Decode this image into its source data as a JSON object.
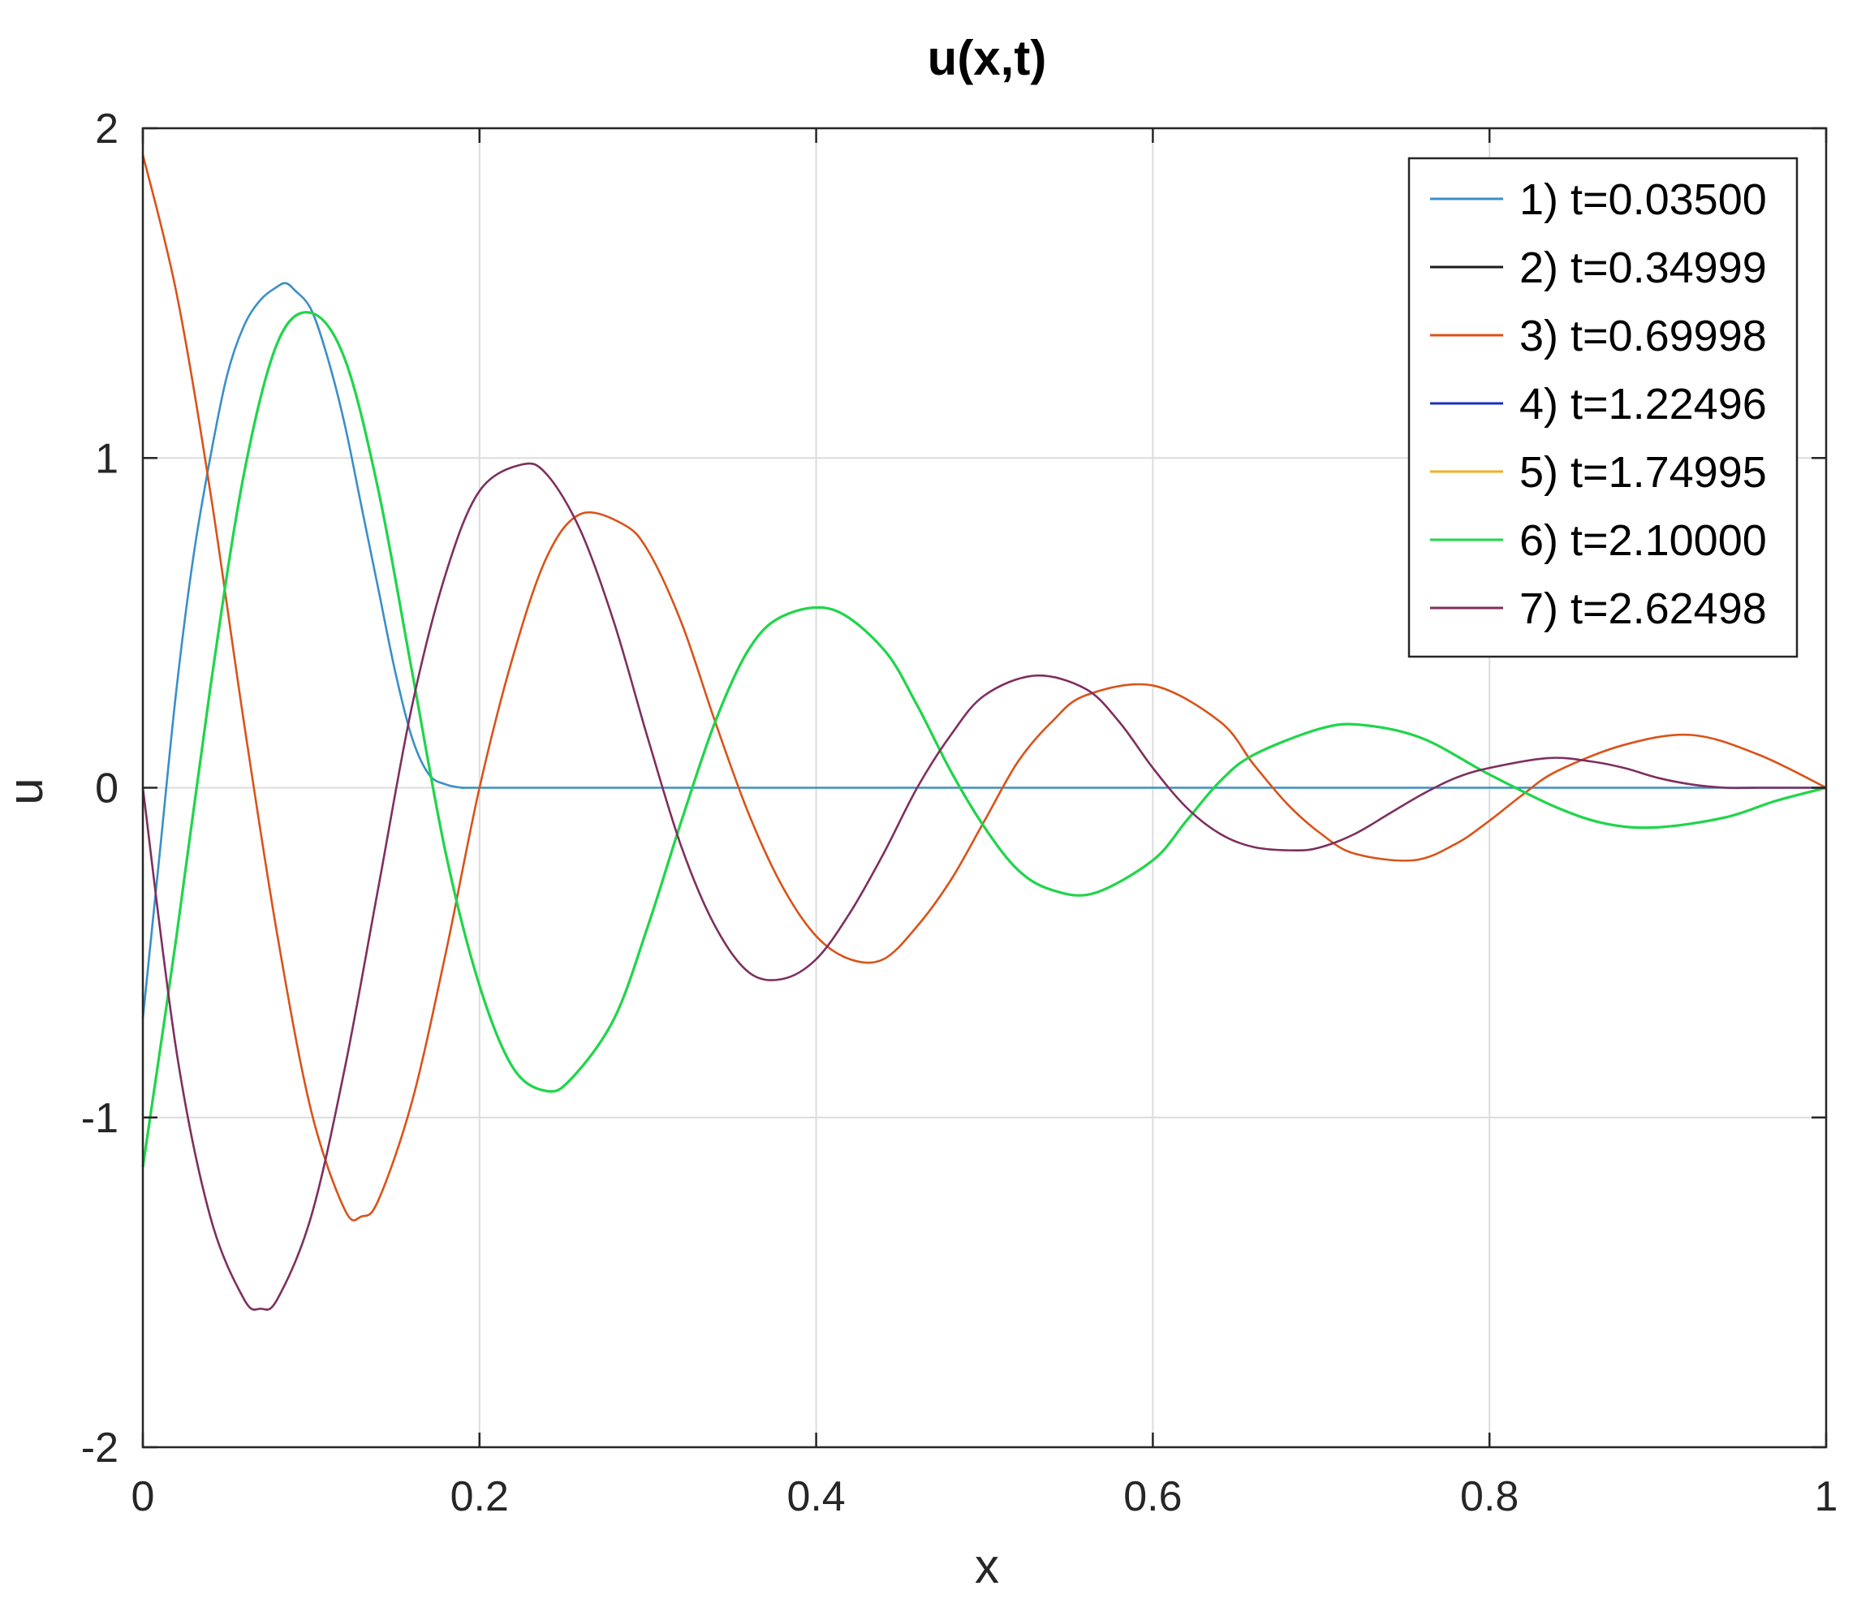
{
  "chart_data": {
    "type": "line",
    "title": "u(x,t)",
    "xlabel": "x",
    "ylabel": "u",
    "xlim": [
      0,
      1
    ],
    "ylim": [
      -2,
      2
    ],
    "xticks": [
      0,
      0.2,
      0.4,
      0.6,
      0.8,
      1
    ],
    "xtick_labels": [
      "0",
      "0.2",
      "0.4",
      "0.6",
      "0.8",
      "1"
    ],
    "yticks": [
      -2,
      -1,
      0,
      1,
      2
    ],
    "ytick_labels": [
      "-2",
      "-1",
      "0",
      "1",
      "2"
    ],
    "grid": true,
    "legend_position": "top-right",
    "series": [
      {
        "name": "1) t=0.03500",
        "color": "#3a8fc8",
        "x": [
          0,
          0.01,
          0.02,
          0.03,
          0.04,
          0.05,
          0.06,
          0.07,
          0.08,
          0.085,
          0.09,
          0.1,
          0.11,
          0.12,
          0.13,
          0.14,
          0.15,
          0.16,
          0.17,
          0.18,
          0.19,
          0.2,
          0.3,
          0.4,
          0.5,
          0.6,
          0.7,
          0.8,
          0.9,
          1.0
        ],
        "y": [
          -0.7,
          -0.2,
          0.3,
          0.7,
          1.0,
          1.25,
          1.4,
          1.48,
          1.52,
          1.53,
          1.51,
          1.45,
          1.3,
          1.1,
          0.85,
          0.6,
          0.35,
          0.15,
          0.04,
          0.01,
          0,
          0,
          0,
          0,
          0,
          0,
          0,
          0,
          0,
          0
        ]
      },
      {
        "name": "2) t=0.34999",
        "color": "#1a1a1a",
        "x": [
          0,
          0.02,
          0.04,
          0.06,
          0.08,
          0.1,
          0.12,
          0.14,
          0.16,
          0.18,
          0.2,
          0.22,
          0.24,
          0.255,
          0.28,
          0.3,
          0.32,
          0.34,
          0.36,
          0.38,
          0.41,
          0.44,
          0.46,
          0.48,
          0.5,
          0.52,
          0.54,
          0.565,
          0.6,
          0.62,
          0.64,
          0.66,
          0.7,
          0.725,
          0.76,
          0.8,
          0.84,
          0.87,
          0.9,
          0.94,
          0.97,
          1.0
        ],
        "y": [
          -1.15,
          -0.45,
          0.3,
          0.95,
          1.35,
          1.44,
          1.3,
          0.9,
          0.35,
          -0.2,
          -0.6,
          -0.85,
          -0.92,
          -0.88,
          -0.7,
          -0.42,
          -0.1,
          0.2,
          0.42,
          0.52,
          0.54,
          0.42,
          0.25,
          0.05,
          -0.12,
          -0.25,
          -0.31,
          -0.32,
          -0.22,
          -0.1,
          0.02,
          0.1,
          0.18,
          0.19,
          0.15,
          0.04,
          -0.06,
          -0.11,
          -0.12,
          -0.09,
          -0.04,
          0
        ]
      },
      {
        "name": "3) t=0.69998",
        "color": "#d95319",
        "x": [
          0,
          0.02,
          0.04,
          0.06,
          0.08,
          0.1,
          0.12,
          0.13,
          0.14,
          0.16,
          0.18,
          0.2,
          0.22,
          0.24,
          0.26,
          0.285,
          0.3,
          0.32,
          0.34,
          0.36,
          0.38,
          0.4,
          0.42,
          0.44,
          0.46,
          0.48,
          0.5,
          0.52,
          0.54,
          0.56,
          0.6,
          0.64,
          0.66,
          0.68,
          0.7,
          0.72,
          0.755,
          0.78,
          0.8,
          0.82,
          0.84,
          0.88,
          0.92,
          0.96,
          1.0
        ],
        "y": [
          1.92,
          1.5,
          0.9,
          0.2,
          -0.45,
          -0.98,
          -1.28,
          -1.3,
          -1.25,
          -0.95,
          -0.5,
          0.0,
          0.4,
          0.7,
          0.83,
          0.8,
          0.72,
          0.5,
          0.2,
          -0.08,
          -0.3,
          -0.45,
          -0.52,
          -0.52,
          -0.42,
          -0.28,
          -0.1,
          0.08,
          0.2,
          0.28,
          0.31,
          0.2,
          0.07,
          -0.05,
          -0.14,
          -0.2,
          -0.22,
          -0.17,
          -0.1,
          -0.02,
          0.05,
          0.13,
          0.16,
          0.1,
          0
        ]
      },
      {
        "name": "4) t=1.22496",
        "color": "#1a2fbf",
        "x": [
          0,
          0.02,
          0.04,
          0.06,
          0.08,
          0.1,
          0.12,
          0.14,
          0.16,
          0.18,
          0.2,
          0.22,
          0.24,
          0.255,
          0.28,
          0.3,
          0.32,
          0.34,
          0.36,
          0.38,
          0.41,
          0.44,
          0.46,
          0.48,
          0.5,
          0.52,
          0.54,
          0.565,
          0.6,
          0.62,
          0.64,
          0.66,
          0.7,
          0.725,
          0.76,
          0.8,
          0.84,
          0.87,
          0.9,
          0.94,
          0.97,
          1.0
        ],
        "y": [
          -1.15,
          -0.45,
          0.3,
          0.95,
          1.35,
          1.44,
          1.3,
          0.9,
          0.35,
          -0.2,
          -0.6,
          -0.85,
          -0.92,
          -0.88,
          -0.7,
          -0.42,
          -0.1,
          0.2,
          0.42,
          0.52,
          0.54,
          0.42,
          0.25,
          0.05,
          -0.12,
          -0.25,
          -0.31,
          -0.32,
          -0.22,
          -0.1,
          0.02,
          0.1,
          0.18,
          0.19,
          0.15,
          0.04,
          -0.06,
          -0.11,
          -0.12,
          -0.09,
          -0.04,
          0
        ]
      },
      {
        "name": "5) t=1.74995",
        "color": "#edb120",
        "x": [
          0,
          0.02,
          0.04,
          0.06,
          0.08,
          0.1,
          0.12,
          0.14,
          0.16,
          0.18,
          0.2,
          0.22,
          0.24,
          0.255,
          0.28,
          0.3,
          0.32,
          0.34,
          0.36,
          0.38,
          0.41,
          0.44,
          0.46,
          0.48,
          0.5,
          0.52,
          0.54,
          0.565,
          0.6,
          0.62,
          0.64,
          0.66,
          0.7,
          0.725,
          0.76,
          0.8,
          0.84,
          0.87,
          0.9,
          0.94,
          0.97,
          1.0
        ],
        "y": [
          -1.15,
          -0.45,
          0.3,
          0.95,
          1.35,
          1.44,
          1.3,
          0.9,
          0.35,
          -0.2,
          -0.6,
          -0.85,
          -0.92,
          -0.88,
          -0.7,
          -0.42,
          -0.1,
          0.2,
          0.42,
          0.52,
          0.54,
          0.42,
          0.25,
          0.05,
          -0.12,
          -0.25,
          -0.31,
          -0.32,
          -0.22,
          -0.1,
          0.02,
          0.1,
          0.18,
          0.19,
          0.15,
          0.04,
          -0.06,
          -0.11,
          -0.12,
          -0.09,
          -0.04,
          0
        ]
      },
      {
        "name": "6) t=2.10000",
        "color": "#1fd64a",
        "x": [
          0,
          0.02,
          0.04,
          0.06,
          0.08,
          0.1,
          0.12,
          0.14,
          0.16,
          0.18,
          0.2,
          0.22,
          0.24,
          0.255,
          0.28,
          0.3,
          0.32,
          0.34,
          0.36,
          0.38,
          0.41,
          0.44,
          0.46,
          0.48,
          0.5,
          0.52,
          0.54,
          0.565,
          0.6,
          0.62,
          0.64,
          0.66,
          0.7,
          0.725,
          0.76,
          0.8,
          0.84,
          0.87,
          0.9,
          0.94,
          0.97,
          1.0
        ],
        "y": [
          -1.15,
          -0.45,
          0.3,
          0.95,
          1.35,
          1.44,
          1.3,
          0.9,
          0.35,
          -0.2,
          -0.6,
          -0.85,
          -0.92,
          -0.88,
          -0.7,
          -0.42,
          -0.1,
          0.2,
          0.42,
          0.52,
          0.54,
          0.42,
          0.25,
          0.05,
          -0.12,
          -0.25,
          -0.31,
          -0.32,
          -0.22,
          -0.1,
          0.02,
          0.1,
          0.18,
          0.19,
          0.15,
          0.04,
          -0.06,
          -0.11,
          -0.12,
          -0.09,
          -0.04,
          0
        ]
      },
      {
        "name": "7) t=2.62498",
        "color": "#7e2f5e",
        "x": [
          0,
          0.02,
          0.04,
          0.06,
          0.07,
          0.08,
          0.1,
          0.12,
          0.14,
          0.16,
          0.18,
          0.2,
          0.225,
          0.24,
          0.26,
          0.28,
          0.3,
          0.32,
          0.34,
          0.36,
          0.38,
          0.4,
          0.42,
          0.44,
          0.46,
          0.48,
          0.5,
          0.53,
          0.56,
          0.58,
          0.6,
          0.62,
          0.64,
          0.66,
          0.685,
          0.7,
          0.72,
          0.74,
          0.76,
          0.78,
          0.8,
          0.835,
          0.86,
          0.88,
          0.9,
          0.92,
          0.94,
          0.96,
          1.0
        ],
        "y": [
          0,
          -0.8,
          -1.3,
          -1.55,
          -1.58,
          -1.55,
          -1.3,
          -0.85,
          -0.3,
          0.25,
          0.65,
          0.9,
          0.98,
          0.95,
          0.78,
          0.5,
          0.15,
          -0.18,
          -0.42,
          -0.56,
          -0.58,
          -0.52,
          -0.38,
          -0.2,
          0.0,
          0.16,
          0.28,
          0.34,
          0.3,
          0.2,
          0.06,
          -0.06,
          -0.14,
          -0.18,
          -0.19,
          -0.18,
          -0.14,
          -0.08,
          -0.02,
          0.03,
          0.06,
          0.09,
          0.08,
          0.06,
          0.03,
          0.01,
          0,
          0,
          0
        ]
      }
    ]
  }
}
